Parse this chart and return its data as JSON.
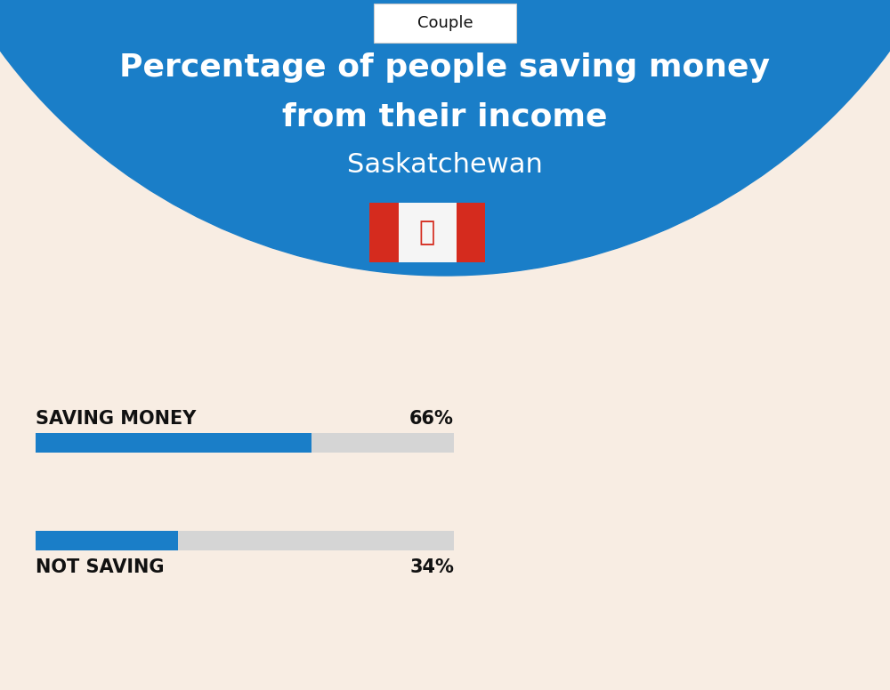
{
  "title_line1": "Percentage of people saving money",
  "title_line2": "from their income",
  "subtitle": "Saskatchewan",
  "tab_label": "Couple",
  "saving_label": "SAVING MONEY",
  "saving_value": 66,
  "saving_pct_text": "66%",
  "not_saving_label": "NOT SAVING",
  "not_saving_value": 34,
  "not_saving_pct_text": "34%",
  "bar_blue": "#1a7ec8",
  "bar_gray": "#d5d5d5",
  "bg_color": "#f8ede3",
  "header_bg": "#1a7ec8",
  "tab_bg": "#ffffff",
  "text_white": "#ffffff",
  "text_dark": "#111111",
  "flag_red": "#d52b1e",
  "flag_white": "#f5f5f5",
  "title_fontsize": 26,
  "subtitle_fontsize": 22,
  "tab_fontsize": 13,
  "bar_label_fontsize": 15,
  "bar_pct_fontsize": 15
}
